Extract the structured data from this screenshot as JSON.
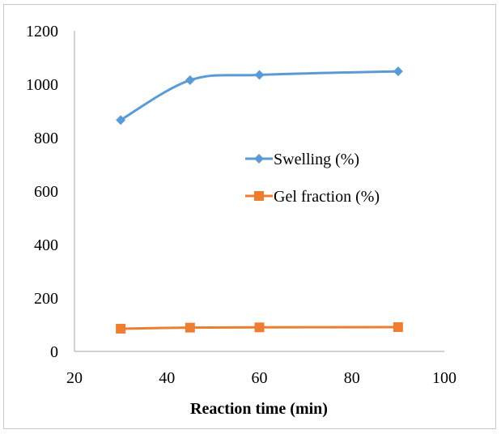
{
  "chart_data": {
    "type": "line",
    "title": "",
    "xlabel": "Reaction time  (min)",
    "ylabel": "",
    "xlim": [
      20,
      100
    ],
    "ylim": [
      0,
      1200
    ],
    "xticks": [
      20,
      40,
      60,
      80,
      100
    ],
    "yticks": [
      0,
      200,
      400,
      600,
      800,
      1000,
      1200
    ],
    "grid": false,
    "legend_position": "center-right",
    "series": [
      {
        "name": "Swelling (%)",
        "color": "#5b9bd5",
        "marker": "diamond",
        "smooth": true,
        "points": [
          [
            30,
            866
          ],
          [
            45,
            1015
          ],
          [
            60,
            1035
          ],
          [
            90,
            1048
          ]
        ]
      },
      {
        "name": "Gel fraction (%)",
        "color": "#ed7d31",
        "marker": "square",
        "smooth": true,
        "points": [
          [
            30,
            85
          ],
          [
            45,
            89
          ],
          [
            60,
            90
          ],
          [
            90,
            91
          ]
        ]
      }
    ]
  }
}
